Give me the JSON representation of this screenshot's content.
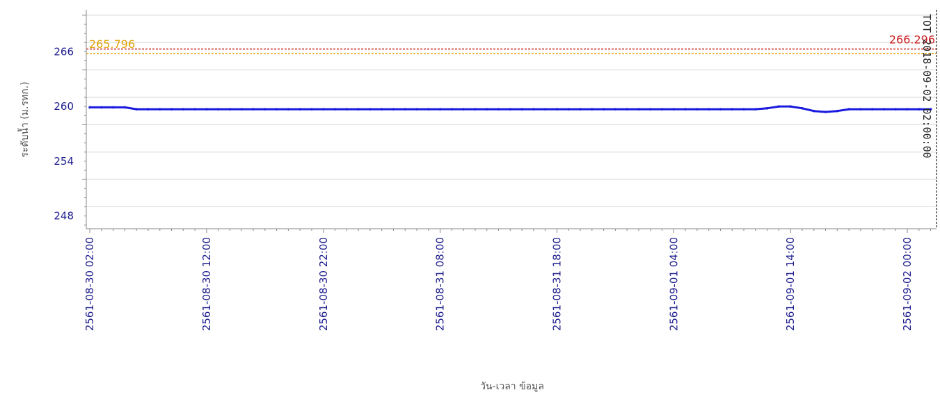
{
  "chart_data": {
    "type": "line",
    "title": "",
    "xlabel": "วัน-เวลา ข้อมูล",
    "ylabel": "ระดับน้ำ (ม.รทก.)",
    "ylim": [
      246.6,
      270.6
    ],
    "y_ticks": [
      {
        "value": 248,
        "label": "248"
      },
      {
        "value": 254,
        "label": "254"
      },
      {
        "value": 260,
        "label": "260"
      },
      {
        "value": 266,
        "label": "266"
      }
    ],
    "x_ticks": [
      {
        "hours": 0,
        "label": "2561-08-30 02:00"
      },
      {
        "hours": 10,
        "label": "2561-08-30 12:00"
      },
      {
        "hours": 20,
        "label": "2561-08-30 22:00"
      },
      {
        "hours": 30,
        "label": "2561-08-31 08:00"
      },
      {
        "hours": 40,
        "label": "2561-08-31 18:00"
      },
      {
        "hours": 50,
        "label": "2561-09-01 04:00"
      },
      {
        "hours": 60,
        "label": "2561-09-01 14:00"
      },
      {
        "hours": 70,
        "label": "2561-09-02 00:00"
      }
    ],
    "x_range_hours": [
      -0.3,
      72.5
    ],
    "grid": true,
    "series": [
      {
        "color": "#1a1adf",
        "x_hours": [
          0,
          1,
          2,
          3,
          4,
          5,
          6,
          7,
          8,
          9,
          10,
          11,
          12,
          13,
          14,
          15,
          16,
          17,
          18,
          19,
          20,
          21,
          22,
          23,
          24,
          25,
          26,
          27,
          28,
          29,
          30,
          31,
          32,
          33,
          34,
          35,
          36,
          37,
          38,
          39,
          40,
          41,
          42,
          43,
          44,
          45,
          46,
          47,
          48,
          49,
          50,
          51,
          52,
          53,
          54,
          55,
          56,
          57,
          58,
          59,
          60,
          61,
          62,
          63,
          64,
          65,
          66,
          67,
          68,
          69,
          70,
          71,
          72
        ],
        "values": [
          259.9,
          259.9,
          259.9,
          259.9,
          259.7,
          259.7,
          259.7,
          259.7,
          259.7,
          259.7,
          259.7,
          259.7,
          259.7,
          259.7,
          259.7,
          259.7,
          259.7,
          259.7,
          259.7,
          259.7,
          259.7,
          259.7,
          259.7,
          259.7,
          259.7,
          259.7,
          259.7,
          259.7,
          259.7,
          259.7,
          259.7,
          259.7,
          259.7,
          259.7,
          259.7,
          259.7,
          259.7,
          259.7,
          259.7,
          259.7,
          259.7,
          259.7,
          259.7,
          259.7,
          259.7,
          259.7,
          259.7,
          259.7,
          259.7,
          259.7,
          259.7,
          259.7,
          259.7,
          259.7,
          259.7,
          259.7,
          259.7,
          259.7,
          259.8,
          260.0,
          260.0,
          259.8,
          259.5,
          259.4,
          259.5,
          259.7,
          259.7,
          259.7,
          259.7,
          259.7,
          259.7,
          259.7,
          259.7
        ]
      }
    ],
    "reference_lines": [
      {
        "value": 265.796,
        "label": "265.796",
        "color": "#e0a000",
        "label_side": "left"
      },
      {
        "value": 266.296,
        "label": "266.296",
        "color": "#cc2222",
        "label_side": "right"
      }
    ],
    "vertical_marker": {
      "hours": 72.5,
      "label": "TOT 2018-09-02 02:00:00",
      "color": "#222222"
    }
  }
}
